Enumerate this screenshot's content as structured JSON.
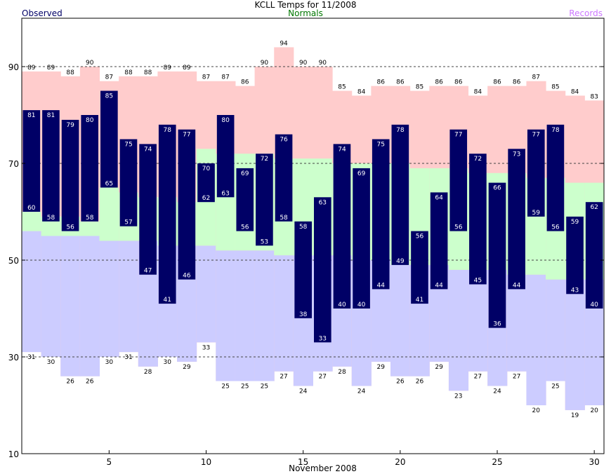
{
  "chart_data": {
    "type": "bar",
    "title": "KCLL Temps for 11/2008",
    "xlabel": "November 2008",
    "ylabel": "",
    "ylim": [
      10,
      100
    ],
    "y_ticks": [
      10,
      30,
      50,
      70,
      90
    ],
    "x_ticks": [
      5,
      10,
      15,
      20,
      25,
      30
    ],
    "grid": "dashed horizontal lines at 30, 50, 70, 90",
    "legend": [
      {
        "name": "Observed",
        "color": "#000066",
        "placement": "top-left"
      },
      {
        "name": "Normals",
        "color": "#007700",
        "placement": "top-center"
      },
      {
        "name": "Records",
        "color": "#cc77ff",
        "placement": "top-right"
      }
    ],
    "days": [
      1,
      2,
      3,
      4,
      5,
      6,
      7,
      8,
      9,
      10,
      11,
      12,
      13,
      14,
      15,
      16,
      17,
      18,
      19,
      20,
      21,
      22,
      23,
      24,
      25,
      26,
      27,
      28,
      29,
      30
    ],
    "series": [
      {
        "name": "Observed High",
        "values": [
          81,
          81,
          79,
          80,
          85,
          75,
          74,
          78,
          77,
          70,
          80,
          69,
          72,
          76,
          58,
          63,
          74,
          69,
          75,
          78,
          56,
          64,
          77,
          72,
          66,
          73,
          77,
          78,
          59,
          62
        ]
      },
      {
        "name": "Observed Low",
        "values": [
          60,
          58,
          56,
          58,
          65,
          57,
          47,
          41,
          46,
          62,
          63,
          56,
          53,
          58,
          38,
          33,
          40,
          40,
          44,
          49,
          41,
          44,
          56,
          45,
          36,
          44,
          59,
          56,
          43,
          40
        ]
      },
      {
        "name": "Record High",
        "values": [
          89,
          89,
          88,
          90,
          87,
          88,
          88,
          89,
          89,
          87,
          87,
          86,
          90,
          94,
          90,
          90,
          85,
          84,
          86,
          86,
          85,
          86,
          86,
          84,
          86,
          86,
          87,
          85,
          84,
          83
        ]
      },
      {
        "name": "Record Low",
        "values": [
          31,
          30,
          26,
          26,
          30,
          31,
          28,
          30,
          29,
          33,
          25,
          25,
          25,
          27,
          24,
          27,
          28,
          24,
          29,
          26,
          26,
          29,
          23,
          27,
          24,
          27,
          20,
          25,
          19,
          20
        ]
      },
      {
        "name": "Normal High",
        "values": [
          60,
          59,
          59,
          58,
          65,
          64,
          63,
          63,
          62,
          73,
          72,
          72,
          72,
          71,
          71,
          71,
          70,
          70,
          70,
          70,
          69,
          69,
          69,
          68,
          68,
          68,
          67,
          67,
          66,
          66
        ]
      },
      {
        "name": "Normal Low",
        "values": [
          56,
          55,
          55,
          55,
          54,
          54,
          54,
          53,
          53,
          53,
          52,
          52,
          52,
          51,
          51,
          51,
          51,
          50,
          50,
          49,
          49,
          49,
          48,
          48,
          48,
          47,
          47,
          46,
          46,
          46
        ]
      }
    ]
  },
  "colors": {
    "record_band": "#ffcccc",
    "normal_band": "#ccffcc",
    "low_band": "#ccccff",
    "observed_bar": "#000066",
    "observed_label": "#ffffff",
    "grid": "#444444"
  }
}
